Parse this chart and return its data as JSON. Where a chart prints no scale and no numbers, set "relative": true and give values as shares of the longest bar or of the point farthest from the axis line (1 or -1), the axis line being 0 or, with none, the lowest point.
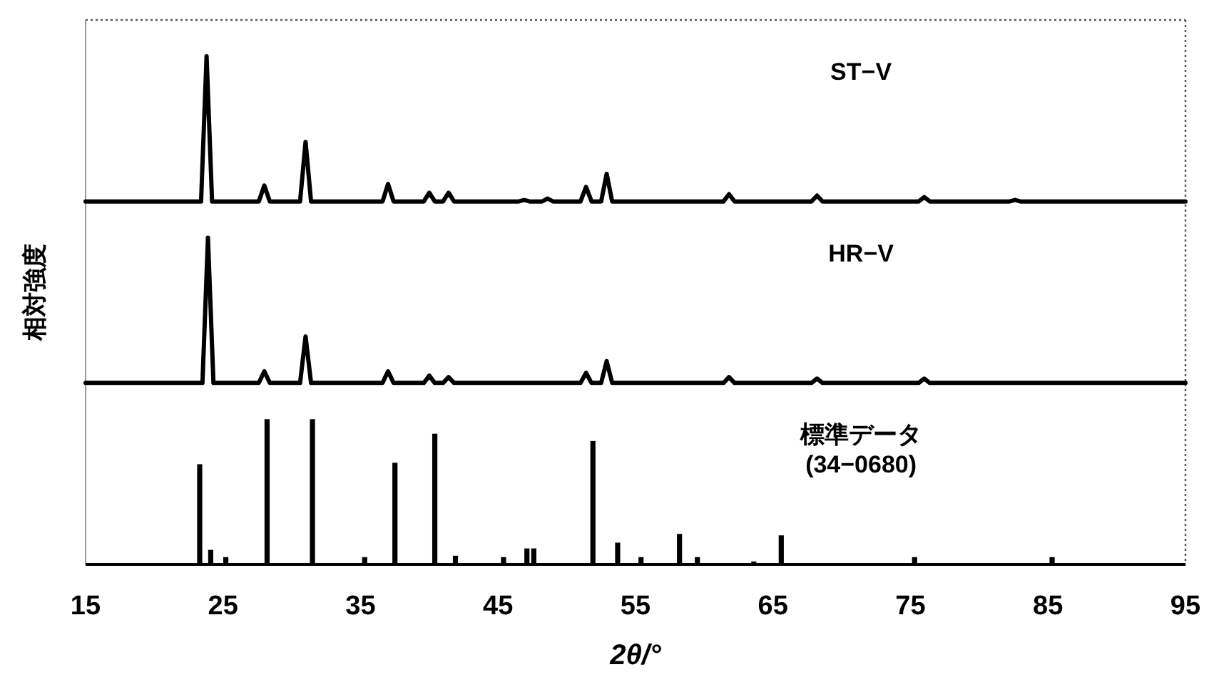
{
  "chart_data": [
    {
      "type": "line",
      "relative": true,
      "color": "#000000",
      "xlim": [
        15,
        95
      ],
      "tick_labels": false,
      "annotations": [
        "ST−V"
      ],
      "x": [
        15,
        23.4,
        23.8,
        24.2,
        27.6,
        28.0,
        28.4,
        30.6,
        31.0,
        31.4,
        36.6,
        37.0,
        37.4,
        39.6,
        40.0,
        40.4,
        41.0,
        41.4,
        41.8,
        46.5,
        46.9,
        47.3,
        48.2,
        48.6,
        49.0,
        51.0,
        51.4,
        51.8,
        52.5,
        52.9,
        53.3,
        61.4,
        61.8,
        62.2,
        67.8,
        68.2,
        68.6,
        75.6,
        76.0,
        76.4,
        82.2,
        82.6,
        83.0,
        95
      ],
      "values": [
        0,
        0,
        1,
        0,
        0,
        0.11,
        0,
        0,
        0.41,
        0,
        0,
        0.12,
        0,
        0,
        0.06,
        0,
        0,
        0.06,
        0,
        0,
        0.01,
        0,
        0,
        0.02,
        0,
        0,
        0.1,
        0,
        0,
        0.19,
        0,
        0,
        0.05,
        0,
        0,
        0.04,
        0,
        0,
        0.03,
        0,
        0,
        0.01,
        0,
        0
      ]
    },
    {
      "type": "line",
      "relative": true,
      "color": "#000000",
      "xlim": [
        15,
        95
      ],
      "tick_labels": false,
      "ylabel": "相対強度",
      "annotations": [
        "HR−V"
      ],
      "x": [
        15,
        23.5,
        23.9,
        24.3,
        27.6,
        28.0,
        28.4,
        30.6,
        31.0,
        31.4,
        36.6,
        37.0,
        37.4,
        39.6,
        40.0,
        40.4,
        41.0,
        41.4,
        41.8,
        51.0,
        51.4,
        51.8,
        52.5,
        52.9,
        53.3,
        61.4,
        61.8,
        62.2,
        67.8,
        68.2,
        68.6,
        75.6,
        76.0,
        76.4,
        95
      ],
      "values": [
        0,
        0,
        1,
        0,
        0,
        0.08,
        0,
        0,
        0.32,
        0,
        0,
        0.08,
        0,
        0,
        0.05,
        0,
        0,
        0.04,
        0,
        0,
        0.07,
        0,
        0,
        0.15,
        0,
        0,
        0.04,
        0,
        0,
        0.03,
        0,
        0,
        0.03,
        0,
        0
      ]
    },
    {
      "type": "bar",
      "relative": true,
      "color": "#000000",
      "xlim": [
        15,
        95
      ],
      "xticks": [
        15,
        25,
        35,
        45,
        55,
        65,
        75,
        85,
        95
      ],
      "tick_labels": "x",
      "xlabel": "2θ/°",
      "annotations": [
        "標準データ",
        "(34−0680)"
      ],
      "x": [
        23.3,
        24.1,
        25.2,
        28.2,
        31.5,
        35.3,
        37.5,
        40.4,
        41.9,
        45.4,
        47.1,
        47.6,
        51.9,
        53.7,
        55.4,
        58.2,
        59.5,
        63.6,
        65.6,
        75.3,
        85.3
      ],
      "values": [
        0.69,
        0.1,
        0.05,
        1,
        1,
        0.05,
        0.7,
        0.9,
        0.06,
        0.05,
        0.11,
        0.11,
        0.85,
        0.15,
        0.05,
        0.21,
        0.05,
        0.02,
        0.2,
        0.05,
        0.05
      ]
    }
  ]
}
